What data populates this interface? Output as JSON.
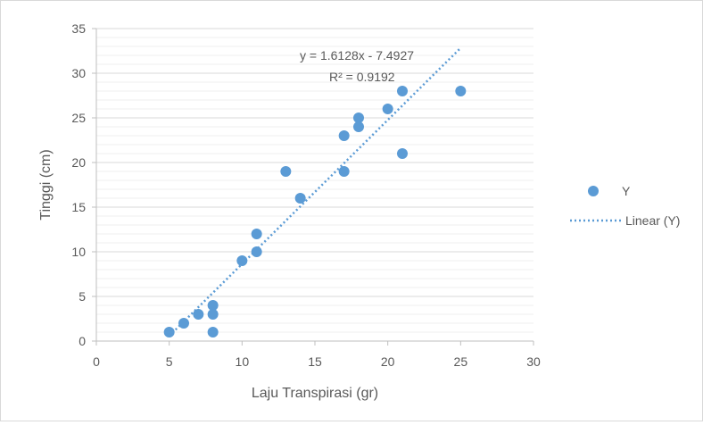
{
  "chart_data": {
    "type": "scatter",
    "title": "",
    "xlabel": "Laju Transpirasi (gr)",
    "ylabel": "Tinggi (cm)",
    "xlim": [
      0,
      30
    ],
    "ylim": [
      0,
      35
    ],
    "x_ticks": [
      "0",
      "5",
      "10",
      "15",
      "20",
      "25",
      "30"
    ],
    "y_ticks": [
      "0",
      "5",
      "10",
      "15",
      "20",
      "25",
      "30",
      "35"
    ],
    "grid": true,
    "legend_position": "right",
    "series": [
      {
        "name": "Y",
        "color": "#5b9bd5",
        "points": [
          [
            5,
            1
          ],
          [
            6,
            2
          ],
          [
            7,
            3
          ],
          [
            8,
            4
          ],
          [
            8,
            3
          ],
          [
            8,
            1
          ],
          [
            10,
            9
          ],
          [
            11,
            10
          ],
          [
            11,
            12
          ],
          [
            13,
            19
          ],
          [
            14,
            16
          ],
          [
            17,
            23
          ],
          [
            17,
            19
          ],
          [
            18,
            25
          ],
          [
            18,
            24
          ],
          [
            20,
            26
          ],
          [
            21,
            28
          ],
          [
            21,
            21
          ],
          [
            25,
            28
          ]
        ]
      }
    ],
    "trendline": {
      "name": "Linear (Y)",
      "type": "linear",
      "slope": 1.6128,
      "intercept": -7.4927,
      "x_range": [
        5,
        25
      ],
      "color": "#5b9bd5",
      "equation_label": "y = 1.6128x - 7.4927",
      "r2_label": "R² = 0.9192"
    }
  }
}
